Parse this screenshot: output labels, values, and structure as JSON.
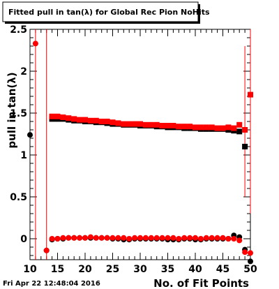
{
  "chart_data": {
    "type": "scatter",
    "title": "Fitted pull in tan(λ) for Global Rec Pion NoHits",
    "xlabel": "No. of Fit Points",
    "ylabel": "pull in tan(λ)",
    "timestamp": "Fri Apr 22 12:48:04 2016",
    "xlim": [
      10,
      50
    ],
    "ylim": [
      -0.25,
      2.5
    ],
    "x_ticks": [
      10,
      15,
      20,
      25,
      30,
      35,
      40,
      45,
      50
    ],
    "y_ticks": [
      0,
      0.5,
      1,
      1.5,
      2,
      2.5
    ],
    "y_tick_labels": [
      "0",
      "0.5",
      "1",
      "1.5",
      "2",
      "2.5"
    ],
    "grid": false,
    "series": [
      {
        "color": "#000000",
        "marker": "circle",
        "points": [
          [
            10,
            1.24
          ],
          [
            13,
            -0.14
          ],
          [
            14,
            -0.01
          ],
          [
            15,
            0.0
          ],
          [
            16,
            0.0
          ],
          [
            17,
            0.01
          ],
          [
            18,
            0.01
          ],
          [
            19,
            0.01
          ],
          [
            20,
            0.01
          ],
          [
            21,
            0.01
          ],
          [
            22,
            0.01
          ],
          [
            23,
            0.01
          ],
          [
            24,
            0.01
          ],
          [
            25,
            0.0
          ],
          [
            26,
            0.0
          ],
          [
            27,
            -0.01
          ],
          [
            28,
            -0.01
          ],
          [
            29,
            0.0
          ],
          [
            30,
            0.0
          ],
          [
            31,
            0.0
          ],
          [
            32,
            0.0
          ],
          [
            33,
            0.0
          ],
          [
            34,
            0.0
          ],
          [
            35,
            -0.01
          ],
          [
            36,
            -0.01
          ],
          [
            37,
            -0.01
          ],
          [
            38,
            0.0
          ],
          [
            39,
            0.0
          ],
          [
            40,
            -0.01
          ],
          [
            41,
            -0.01
          ],
          [
            42,
            0.0
          ],
          [
            43,
            0.0
          ],
          [
            44,
            0.0
          ],
          [
            45,
            0.0
          ],
          [
            46,
            0.0
          ],
          [
            47,
            0.04
          ],
          [
            48,
            0.02
          ],
          [
            49,
            -0.13
          ],
          [
            50,
            -0.27
          ]
        ]
      },
      {
        "color": "#000000",
        "marker": "square",
        "points": [
          [
            14,
            1.43
          ],
          [
            15,
            1.43
          ],
          [
            16,
            1.43
          ],
          [
            17,
            1.42
          ],
          [
            18,
            1.41
          ],
          [
            19,
            1.41
          ],
          [
            20,
            1.4
          ],
          [
            21,
            1.4
          ],
          [
            22,
            1.39
          ],
          [
            23,
            1.39
          ],
          [
            24,
            1.38
          ],
          [
            25,
            1.37
          ],
          [
            26,
            1.37
          ],
          [
            27,
            1.36
          ],
          [
            28,
            1.36
          ],
          [
            29,
            1.36
          ],
          [
            30,
            1.35
          ],
          [
            31,
            1.35
          ],
          [
            32,
            1.35
          ],
          [
            33,
            1.34
          ],
          [
            34,
            1.34
          ],
          [
            35,
            1.33
          ],
          [
            36,
            1.33
          ],
          [
            37,
            1.33
          ],
          [
            38,
            1.32
          ],
          [
            39,
            1.32
          ],
          [
            40,
            1.32
          ],
          [
            41,
            1.31
          ],
          [
            42,
            1.31
          ],
          [
            43,
            1.31
          ],
          [
            44,
            1.31
          ],
          [
            45,
            1.31
          ],
          [
            46,
            1.3
          ],
          [
            47,
            1.29
          ],
          [
            48,
            1.28
          ],
          [
            49,
            1.1
          ]
        ]
      },
      {
        "color": "#ff0000",
        "marker": "circle",
        "points": [
          [
            11,
            2.33
          ],
          [
            13,
            -0.14
          ],
          [
            14,
            0.0
          ],
          [
            15,
            0.0
          ],
          [
            16,
            0.01
          ],
          [
            17,
            0.01
          ],
          [
            18,
            0.01
          ],
          [
            19,
            0.01
          ],
          [
            20,
            0.01
          ],
          [
            21,
            0.02
          ],
          [
            22,
            0.01
          ],
          [
            23,
            0.01
          ],
          [
            24,
            0.01
          ],
          [
            25,
            0.01
          ],
          [
            26,
            0.01
          ],
          [
            27,
            0.01
          ],
          [
            28,
            0.0
          ],
          [
            29,
            0.01
          ],
          [
            30,
            0.01
          ],
          [
            31,
            0.01
          ],
          [
            32,
            0.01
          ],
          [
            33,
            0.01
          ],
          [
            34,
            0.01
          ],
          [
            35,
            0.01
          ],
          [
            36,
            0.01
          ],
          [
            37,
            0.0
          ],
          [
            38,
            0.01
          ],
          [
            39,
            0.01
          ],
          [
            40,
            0.01
          ],
          [
            41,
            0.0
          ],
          [
            42,
            0.01
          ],
          [
            43,
            0.01
          ],
          [
            44,
            0.01
          ],
          [
            45,
            0.01
          ],
          [
            46,
            0.0
          ],
          [
            47,
            0.0
          ],
          [
            48,
            -0.02
          ],
          [
            49,
            -0.16
          ],
          [
            50,
            -0.17
          ]
        ]
      },
      {
        "color": "#ff0000",
        "marker": "square",
        "points": [
          [
            14,
            1.46
          ],
          [
            15,
            1.46
          ],
          [
            16,
            1.45
          ],
          [
            17,
            1.44
          ],
          [
            18,
            1.43
          ],
          [
            19,
            1.42
          ],
          [
            20,
            1.42
          ],
          [
            21,
            1.41
          ],
          [
            22,
            1.41
          ],
          [
            23,
            1.4
          ],
          [
            24,
            1.4
          ],
          [
            25,
            1.39
          ],
          [
            26,
            1.38
          ],
          [
            27,
            1.37
          ],
          [
            28,
            1.37
          ],
          [
            29,
            1.37
          ],
          [
            30,
            1.37
          ],
          [
            31,
            1.36
          ],
          [
            32,
            1.36
          ],
          [
            33,
            1.36
          ],
          [
            34,
            1.35
          ],
          [
            35,
            1.35
          ],
          [
            36,
            1.35
          ],
          [
            37,
            1.34
          ],
          [
            38,
            1.34
          ],
          [
            39,
            1.34
          ],
          [
            40,
            1.33
          ],
          [
            41,
            1.33
          ],
          [
            42,
            1.33
          ],
          [
            43,
            1.33
          ],
          [
            44,
            1.32
          ],
          [
            45,
            1.32
          ],
          [
            46,
            1.33
          ],
          [
            47,
            1.32
          ],
          [
            48,
            1.36
          ],
          [
            49,
            1.3
          ],
          [
            50,
            1.72
          ]
        ]
      }
    ],
    "error_bars": [
      {
        "x": 10,
        "low": 1.0,
        "high": 2.5,
        "color": "#000000"
      },
      {
        "x": 11,
        "low": -0.25,
        "high": 2.5,
        "color": "#ff0000"
      },
      {
        "x": 13,
        "low": -0.25,
        "high": 2.5,
        "color": "#ff0000"
      },
      {
        "x": 49,
        "low": 0.5,
        "high": 2.3,
        "color": "#ff0000"
      },
      {
        "x": 50,
        "low": -0.25,
        "high": 2.5,
        "color": "#ff0000"
      },
      {
        "x": 50,
        "low": -0.25,
        "high": 0.3,
        "color": "#000000"
      }
    ]
  }
}
